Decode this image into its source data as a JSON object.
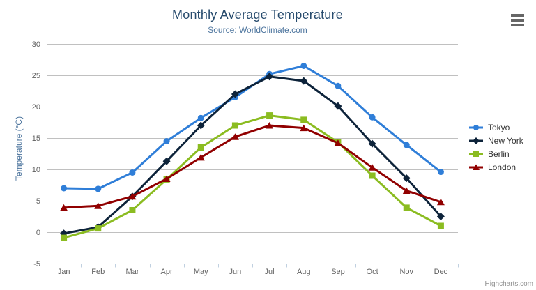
{
  "credits": "Highcharts.com",
  "icons": {
    "export_menu": "hamburger"
  },
  "colors": {
    "title": "#274b6d",
    "subtitle": "#4d759e",
    "axis_title": "#4d759e",
    "axis_labels": "#606060",
    "legend_text": "#333333",
    "gridline": "#c0c0c0",
    "axis_line": "#c0d0e0",
    "credits": "#909090",
    "export_icon": "#666666",
    "background": "#ffffff"
  },
  "chart_data": {
    "type": "line",
    "title": "Monthly Average Temperature",
    "subtitle": "Source: WorldClimate.com",
    "xlabel": "",
    "ylabel": "Temperature (°C)",
    "categories": [
      "Jan",
      "Feb",
      "Mar",
      "Apr",
      "May",
      "Jun",
      "Jul",
      "Aug",
      "Sep",
      "Oct",
      "Nov",
      "Dec"
    ],
    "series": [
      {
        "name": "Tokyo",
        "color": "#2f7ed8",
        "marker": "circle",
        "values": [
          7.0,
          6.9,
          9.5,
          14.5,
          18.2,
          21.5,
          25.2,
          26.5,
          23.3,
          18.3,
          13.9,
          9.6
        ]
      },
      {
        "name": "New York",
        "color": "#0d233a",
        "marker": "diamond",
        "values": [
          -0.2,
          0.8,
          5.7,
          11.3,
          17.0,
          22.0,
          24.8,
          24.1,
          20.1,
          14.1,
          8.6,
          2.5
        ]
      },
      {
        "name": "Berlin",
        "color": "#8bbc21",
        "marker": "square",
        "values": [
          -0.9,
          0.6,
          3.5,
          8.4,
          13.5,
          17.0,
          18.6,
          17.9,
          14.3,
          9.0,
          3.9,
          1.0
        ]
      },
      {
        "name": "London",
        "color": "#910000",
        "marker": "triangle",
        "values": [
          3.9,
          4.2,
          5.7,
          8.5,
          11.9,
          15.2,
          17.0,
          16.6,
          14.2,
          10.3,
          6.6,
          4.8
        ]
      }
    ],
    "ylim": [
      -5,
      30
    ],
    "yticks": [
      -5,
      0,
      5,
      10,
      15,
      20,
      25,
      30
    ],
    "grid": "horizontal",
    "legend_position": "right"
  }
}
